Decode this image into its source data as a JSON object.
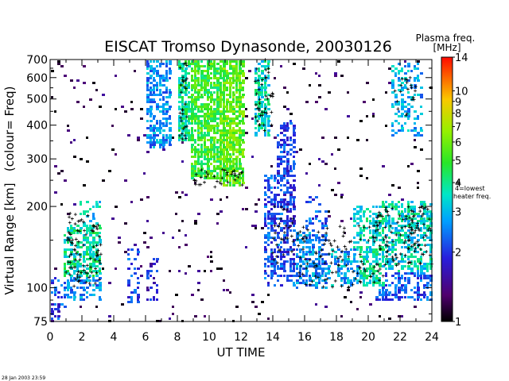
{
  "chart_data": {
    "type": "heatmap",
    "title": "EISCAT Tromso Dynasonde,  20030126",
    "xlabel": "UT TIME",
    "ylabel": "Virtual Range [km]   (colour= Freq)",
    "xlim": [
      0,
      24
    ],
    "ylim": [
      75,
      700
    ],
    "yscale": "log",
    "x_ticks": [
      0,
      2,
      4,
      6,
      8,
      10,
      12,
      14,
      16,
      18,
      20,
      22,
      24
    ],
    "y_ticks": [
      75,
      100,
      200,
      300,
      400,
      500,
      600,
      700
    ],
    "colorbar": {
      "title": "Plasma freq.",
      "unit": "[MHz]",
      "scale": "log",
      "range": [
        1,
        14
      ],
      "ticks": [
        1,
        2,
        3,
        4,
        5,
        6,
        7,
        8,
        9,
        10,
        14
      ],
      "marker_label_line1": "4=lowest",
      "marker_label_line2": "heater freq."
    },
    "regions": [
      {
        "t0": 0.0,
        "t1": 0.6,
        "r0": 76,
        "r1": 90,
        "f": 2.0,
        "d": 0.55
      },
      {
        "t0": 0.0,
        "t1": 1.0,
        "r0": 85,
        "r1": 110,
        "f": 2.3,
        "d": 0.3
      },
      {
        "t0": 0.8,
        "t1": 3.3,
        "r0": 90,
        "r1": 110,
        "f": 2.6,
        "d": 0.5
      },
      {
        "t0": 0.8,
        "t1": 3.3,
        "r0": 105,
        "r1": 170,
        "f": 3.8,
        "d": 0.6
      },
      {
        "t0": 1.8,
        "t1": 3.2,
        "r0": 160,
        "r1": 210,
        "f": 3.2,
        "d": 0.35
      },
      {
        "t0": 4.8,
        "t1": 5.6,
        "r0": 88,
        "r1": 140,
        "f": 2.2,
        "d": 0.45
      },
      {
        "t0": 6.0,
        "t1": 6.8,
        "r0": 90,
        "r1": 130,
        "f": 1.8,
        "d": 0.35
      },
      {
        "t0": 6.0,
        "t1": 7.7,
        "r0": 330,
        "r1": 700,
        "f": 2.6,
        "d": 0.65
      },
      {
        "t0": 8.1,
        "t1": 8.8,
        "r0": 350,
        "r1": 700,
        "f": 4.0,
        "d": 0.75
      },
      {
        "t0": 8.8,
        "t1": 10.6,
        "r0": 250,
        "r1": 700,
        "f": 5.0,
        "d": 0.8
      },
      {
        "t0": 10.6,
        "t1": 12.3,
        "r0": 235,
        "r1": 700,
        "f": 5.6,
        "d": 0.85
      },
      {
        "t0": 12.8,
        "t1": 13.9,
        "r0": 360,
        "r1": 700,
        "f": 3.5,
        "d": 0.75
      },
      {
        "t0": 13.5,
        "t1": 14.6,
        "r0": 100,
        "r1": 260,
        "f": 2.2,
        "d": 0.55
      },
      {
        "t0": 14.3,
        "t1": 15.5,
        "r0": 105,
        "r1": 420,
        "f": 2.0,
        "d": 0.6
      },
      {
        "t0": 15.3,
        "t1": 17.5,
        "r0": 98,
        "r1": 160,
        "f": 2.6,
        "d": 0.6
      },
      {
        "t0": 16.0,
        "t1": 17.5,
        "r0": 150,
        "r1": 220,
        "f": 2.2,
        "d": 0.3
      },
      {
        "t0": 17.5,
        "t1": 19.5,
        "r0": 100,
        "r1": 140,
        "f": 2.8,
        "d": 0.55
      },
      {
        "t0": 19.0,
        "t1": 21.0,
        "r0": 100,
        "r1": 200,
        "f": 3.6,
        "d": 0.6
      },
      {
        "t0": 20.5,
        "t1": 24.0,
        "r0": 90,
        "r1": 115,
        "f": 2.2,
        "d": 0.55
      },
      {
        "t0": 20.8,
        "t1": 24.0,
        "r0": 110,
        "r1": 210,
        "f": 3.4,
        "d": 0.6
      },
      {
        "t0": 21.5,
        "t1": 23.5,
        "r0": 360,
        "r1": 680,
        "f": 2.8,
        "d": 0.35
      },
      {
        "t0": 0.0,
        "t1": 24.0,
        "r0": 75,
        "r1": 700,
        "f": 1.2,
        "d": 0.035
      }
    ],
    "points": [
      {
        "t0": 1.0,
        "t1": 3.2,
        "r0": 100,
        "r1": 190,
        "n": 90
      },
      {
        "t0": 8.1,
        "t1": 8.6,
        "r0": 350,
        "r1": 700,
        "n": 30
      },
      {
        "t0": 8.8,
        "t1": 12.3,
        "r0": 235,
        "r1": 275,
        "n": 35
      },
      {
        "t0": 12.9,
        "t1": 14.0,
        "r0": 380,
        "r1": 700,
        "n": 40
      },
      {
        "t0": 14.0,
        "t1": 15.3,
        "r0": 120,
        "r1": 200,
        "n": 30
      },
      {
        "t0": 15.5,
        "t1": 21.0,
        "r0": 100,
        "r1": 170,
        "n": 110
      },
      {
        "t0": 20.5,
        "t1": 24.0,
        "r0": 120,
        "r1": 200,
        "n": 120
      },
      {
        "t0": 21.6,
        "t1": 23.0,
        "r0": 420,
        "r1": 600,
        "n": 20
      }
    ]
  },
  "footer_timestamp": "28 Jan 2003 23:59"
}
